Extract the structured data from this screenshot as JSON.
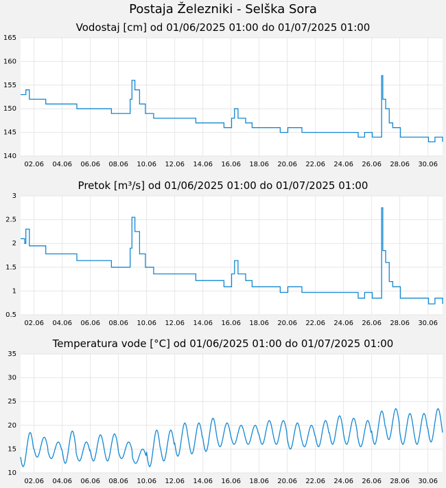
{
  "page_title": "Postaja Železniki - Selška Sora",
  "chart_data": [
    {
      "type": "line",
      "title": "Vodostaj [cm] od 01/06/2025 01:00 do 01/07/2025 01:00",
      "ylim": [
        140,
        165
      ],
      "y_ticks": [
        "140",
        "145",
        "150",
        "155",
        "160",
        "165"
      ],
      "x_ticks": [
        "02.06",
        "04.06",
        "06.06",
        "08.06",
        "10.06",
        "12.06",
        "14.06",
        "16.06",
        "18.06",
        "20.06",
        "22.06",
        "24.06",
        "26.06",
        "28.06",
        "30.06"
      ],
      "grid": true,
      "series": [
        {
          "color": "#1187d2",
          "x": [
            "01.06 01:00",
            "01.06 08:00",
            "01.06 10:00",
            "01.06 16:00",
            "02.06 00:00",
            "02.06 12:00",
            "02.06 20:00",
            "03.06 06:00",
            "04.06 01:00",
            "04.06 13:00",
            "05.06 01:00",
            "05.06 15:00",
            "06.06 01:00",
            "06.06 12:00",
            "07.06 00:00",
            "07.06 12:00",
            "08.06 01:00",
            "08.06 14:00",
            "08.06 20:00",
            "08.06 23:00",
            "09.06 04:00",
            "09.06 12:00",
            "09.06 22:00",
            "10.06 01:00",
            "10.06 12:00",
            "11.06 01:00",
            "11.06 12:00",
            "12.06 01:00",
            "13.06 01:00",
            "13.06 12:00",
            "14.06 01:00",
            "14.06 12:00",
            "15.06 01:00",
            "15.06 12:00",
            "15.06 22:00",
            "16.06 01:00",
            "16.06 06:00",
            "16.06 12:00",
            "17.06 01:00",
            "17.06 12:00",
            "18.06 01:00",
            "18.06 12:00",
            "19.06 01:00",
            "19.06 12:00",
            "20.06 01:00",
            "20.06 12:00",
            "21.06 01:00",
            "21.06 12:00",
            "22.06 01:00",
            "23.06 01:00",
            "23.06 12:00",
            "24.06 01:00",
            "25.06 01:00",
            "25.06 12:00",
            "26.06 01:00",
            "26.06 12:00",
            "26.06 16:00",
            "26.06 17:00",
            "26.06 19:00",
            "27.06 00:00",
            "27.06 06:00",
            "27.06 12:00",
            "28.06 01:00",
            "28.06 12:00",
            "29.06 01:00",
            "29.06 12:00",
            "30.06 01:00",
            "30.06 12:00",
            "01.07 01:00"
          ],
          "y": [
            153,
            153,
            154,
            152,
            152,
            152,
            151,
            151,
            151,
            151,
            150,
            150,
            150,
            150,
            150,
            149,
            149,
            149,
            152,
            156,
            154,
            151,
            149,
            149,
            148,
            148,
            148,
            148,
            148,
            147,
            147,
            147,
            147,
            146,
            146,
            148,
            150,
            148,
            147,
            146,
            146,
            146,
            146,
            145,
            146,
            146,
            145,
            145,
            145,
            145,
            145,
            145,
            144,
            145,
            144,
            144,
            144,
            157,
            152,
            150,
            147,
            146,
            144,
            144,
            144,
            144,
            143,
            144,
            143
          ]
        }
      ]
    },
    {
      "type": "line",
      "title": "Pretok [m³/s] od 01/06/2025 01:00 do 01/07/2025 01:00",
      "ylim": [
        0.5,
        3
      ],
      "y_ticks": [
        "0.5",
        "1",
        "1.5",
        "2",
        "2.5",
        "3"
      ],
      "x_ticks": [
        "02.06",
        "04.06",
        "06.06",
        "08.06",
        "10.06",
        "12.06",
        "14.06",
        "16.06",
        "18.06",
        "20.06",
        "22.06",
        "24.06",
        "26.06",
        "28.06",
        "30.06"
      ],
      "grid": true,
      "series": [
        {
          "color": "#1187d2",
          "x": [
            "01.06 01:00",
            "01.06 08:00",
            "01.06 10:00",
            "01.06 16:00",
            "02.06 00:00",
            "02.06 12:00",
            "02.06 20:00",
            "03.06 06:00",
            "04.06 01:00",
            "04.06 13:00",
            "05.06 01:00",
            "05.06 15:00",
            "06.06 01:00",
            "06.06 12:00",
            "07.06 00:00",
            "07.06 12:00",
            "08.06 01:00",
            "08.06 14:00",
            "08.06 20:00",
            "08.06 23:00",
            "09.06 04:00",
            "09.06 12:00",
            "09.06 22:00",
            "10.06 01:00",
            "10.06 12:00",
            "11.06 01:00",
            "11.06 12:00",
            "12.06 01:00",
            "13.06 01:00",
            "13.06 12:00",
            "14.06 01:00",
            "14.06 12:00",
            "15.06 01:00",
            "15.06 12:00",
            "15.06 22:00",
            "16.06 01:00",
            "16.06 06:00",
            "16.06 12:00",
            "17.06 01:00",
            "17.06 12:00",
            "18.06 01:00",
            "18.06 12:00",
            "19.06 01:00",
            "19.06 12:00",
            "20.06 01:00",
            "20.06 12:00",
            "21.06 01:00",
            "21.06 12:00",
            "22.06 01:00",
            "23.06 01:00",
            "23.06 12:00",
            "24.06 01:00",
            "25.06 01:00",
            "25.06 12:00",
            "26.06 01:00",
            "26.06 12:00",
            "26.06 16:00",
            "26.06 17:00",
            "26.06 19:00",
            "27.06 00:00",
            "27.06 06:00",
            "27.06 12:00",
            "28.06 01:00",
            "28.06 12:00",
            "29.06 01:00",
            "29.06 12:00",
            "30.06 01:00",
            "30.06 12:00",
            "01.07 01:00"
          ],
          "y": [
            2.1,
            2.0,
            2.3,
            1.95,
            1.95,
            1.95,
            1.78,
            1.78,
            1.78,
            1.78,
            1.64,
            1.64,
            1.64,
            1.64,
            1.64,
            1.5,
            1.5,
            1.5,
            1.9,
            2.55,
            2.25,
            1.78,
            1.5,
            1.5,
            1.36,
            1.36,
            1.36,
            1.36,
            1.36,
            1.22,
            1.22,
            1.22,
            1.22,
            1.09,
            1.09,
            1.36,
            1.64,
            1.36,
            1.22,
            1.09,
            1.09,
            1.09,
            1.09,
            0.97,
            1.09,
            1.09,
            0.97,
            0.97,
            0.97,
            0.97,
            0.97,
            0.97,
            0.85,
            0.97,
            0.85,
            0.85,
            0.85,
            2.75,
            1.85,
            1.6,
            1.2,
            1.09,
            0.85,
            0.85,
            0.85,
            0.85,
            0.73,
            0.85,
            0.73
          ]
        }
      ]
    },
    {
      "type": "line",
      "title": "Temperatura vode [°C] od 01/06/2025 01:00 do 01/07/2025 01:00",
      "ylim": [
        10,
        35
      ],
      "y_ticks": [
        "10",
        "15",
        "20",
        "25",
        "30",
        "35"
      ],
      "x_ticks": [
        "02.06",
        "04.06",
        "06.06",
        "08.06",
        "10.06",
        "12.06",
        "14.06",
        "16.06",
        "18.06",
        "20.06",
        "22.06",
        "24.06",
        "26.06",
        "28.06",
        "30.06"
      ],
      "grid": true,
      "series": [
        {
          "color": "#1187d2",
          "daily_min": [
            11.3,
            13.3,
            13.0,
            12.0,
            12.5,
            12.5,
            12.5,
            13.0,
            12.0,
            11.3,
            12.5,
            13.5,
            14.0,
            14.5,
            15.5,
            16.0,
            16.0,
            16.0,
            16.0,
            15.0,
            15.5,
            15.5,
            16.0,
            16.0,
            15.5,
            16.0,
            17.0,
            16.0,
            16.0,
            16.5
          ],
          "daily_max": [
            18.5,
            17.5,
            16.5,
            18.8,
            16.5,
            18.0,
            18.2,
            16.5,
            15.0,
            19.0,
            19.0,
            20.5,
            20.5,
            21.5,
            20.5,
            20.0,
            20.0,
            21.0,
            21.0,
            20.5,
            20.0,
            21.0,
            22.0,
            21.5,
            21.0,
            23.0,
            23.5,
            22.5,
            22.5,
            23.5
          ],
          "last_value": 18.5
        }
      ]
    }
  ]
}
